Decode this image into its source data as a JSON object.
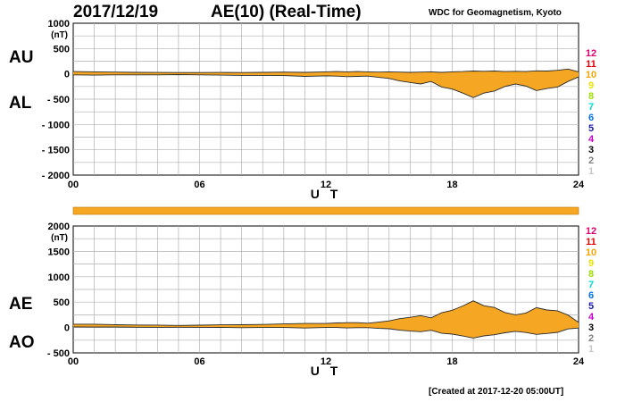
{
  "header": {
    "date": "2017/12/19",
    "title": "AE(10) (Real-Time)",
    "source": "WDC for Geomagnetism, Kyoto"
  },
  "footer": {
    "created": "[Created at 2017-12-20 05:00UT]"
  },
  "colors": {
    "fill": "#f5a623",
    "line": "#2b2b2b",
    "grid": "#b0b0b0",
    "bar": "#f5a623"
  },
  "legend": {
    "numbers": [
      "12",
      "11",
      "10",
      "9",
      "8",
      "7",
      "6",
      "5",
      "4",
      "3",
      "2",
      "1"
    ],
    "colors": [
      "#e2006e",
      "#e60000",
      "#f5a600",
      "#f0e000",
      "#9cdc00",
      "#00d8d8",
      "#0070f0",
      "#1a1aa8",
      "#c800c8",
      "#000000",
      "#808080",
      "#c8c8c8"
    ]
  },
  "chart_data": [
    {
      "type": "area",
      "name": "AU-AL",
      "unit": "(nT)",
      "xlabel": "U T",
      "xlim": [
        0,
        24
      ],
      "ylim": [
        -2000,
        1000
      ],
      "yticks": [
        1000,
        500,
        0,
        -500,
        -1000,
        -1500,
        -2000
      ],
      "ytick_labels": [
        "1000",
        "500",
        "0",
        "- 500",
        "- 1000",
        "- 1500",
        "- 2000"
      ],
      "xticks": [
        0,
        6,
        12,
        18,
        24
      ],
      "xtick_labels": [
        "00",
        "06",
        "12",
        "18",
        "24"
      ],
      "upper_label": "AU",
      "lower_label": "AL",
      "series": [
        {
          "name": "AU",
          "x": [
            0,
            1,
            2,
            3,
            4,
            5,
            6,
            7,
            8,
            9,
            10,
            11,
            12,
            12.5,
            13,
            13.5,
            14,
            14.5,
            15,
            15.5,
            16,
            16.5,
            17,
            17.5,
            18,
            18.5,
            19,
            19.5,
            20,
            20.5,
            21,
            21.5,
            22,
            22.5,
            23,
            23.5,
            24
          ],
          "y": [
            45,
            40,
            35,
            30,
            28,
            25,
            25,
            28,
            25,
            30,
            35,
            30,
            40,
            45,
            40,
            45,
            40,
            35,
            40,
            35,
            30,
            35,
            40,
            30,
            40,
            45,
            55,
            50,
            55,
            45,
            50,
            45,
            60,
            55,
            70,
            95,
            40
          ]
        },
        {
          "name": "AL",
          "x": [
            0,
            1,
            2,
            3,
            4,
            5,
            6,
            7,
            8,
            9,
            10,
            11,
            12,
            12.5,
            13,
            13.5,
            14,
            14.5,
            15,
            15.5,
            16,
            16.5,
            17,
            17.5,
            18,
            18.5,
            19,
            19.5,
            20,
            20.5,
            21,
            21.5,
            22,
            22.5,
            23,
            23.5,
            24
          ],
          "y": [
            -20,
            -25,
            -20,
            -20,
            -20,
            -15,
            -20,
            -25,
            -30,
            -30,
            -35,
            -50,
            -40,
            -45,
            -55,
            -50,
            -45,
            -70,
            -90,
            -140,
            -170,
            -200,
            -150,
            -260,
            -300,
            -380,
            -470,
            -380,
            -340,
            -250,
            -200,
            -240,
            -330,
            -290,
            -260,
            -150,
            -60
          ]
        }
      ]
    },
    {
      "type": "area",
      "name": "AE-AO",
      "unit": "(nT)",
      "xlabel": "U T",
      "xlim": [
        0,
        24
      ],
      "ylim": [
        -500,
        2000
      ],
      "yticks": [
        2000,
        1500,
        1000,
        500,
        0,
        -500
      ],
      "ytick_labels": [
        "2000",
        "1500",
        "1000",
        "500",
        "0",
        "- 500"
      ],
      "xticks": [
        0,
        6,
        12,
        18,
        24
      ],
      "xtick_labels": [
        "00",
        "06",
        "12",
        "18",
        "24"
      ],
      "upper_label": "AE",
      "lower_label": "AO",
      "series": [
        {
          "name": "AE",
          "x": [
            0,
            1,
            2,
            3,
            4,
            5,
            6,
            7,
            8,
            9,
            10,
            11,
            12,
            12.5,
            13,
            13.5,
            14,
            14.5,
            15,
            15.5,
            16,
            16.5,
            17,
            17.5,
            18,
            18.5,
            19,
            19.5,
            20,
            20.5,
            21,
            21.5,
            22,
            22.5,
            23,
            23.5,
            24
          ],
          "y": [
            65,
            65,
            55,
            50,
            48,
            40,
            45,
            53,
            55,
            60,
            70,
            80,
            80,
            90,
            95,
            95,
            85,
            105,
            130,
            175,
            200,
            235,
            190,
            290,
            340,
            425,
            525,
            430,
            395,
            295,
            250,
            285,
            390,
            345,
            330,
            245,
            100
          ]
        },
        {
          "name": "AO",
          "x": [
            0,
            1,
            2,
            3,
            4,
            5,
            6,
            7,
            8,
            9,
            10,
            11,
            12,
            12.5,
            13,
            13.5,
            14,
            14.5,
            15,
            15.5,
            16,
            16.5,
            17,
            17.5,
            18,
            18.5,
            19,
            19.5,
            20,
            20.5,
            21,
            21.5,
            22,
            22.5,
            23,
            23.5,
            24
          ],
          "y": [
            12,
            8,
            8,
            5,
            4,
            5,
            3,
            2,
            -3,
            0,
            0,
            -10,
            0,
            0,
            -8,
            -3,
            -3,
            -18,
            -25,
            -53,
            -70,
            -83,
            -55,
            -115,
            -130,
            -168,
            -208,
            -165,
            -143,
            -103,
            -75,
            -98,
            -135,
            -118,
            -95,
            -28,
            -10
          ]
        }
      ]
    }
  ]
}
